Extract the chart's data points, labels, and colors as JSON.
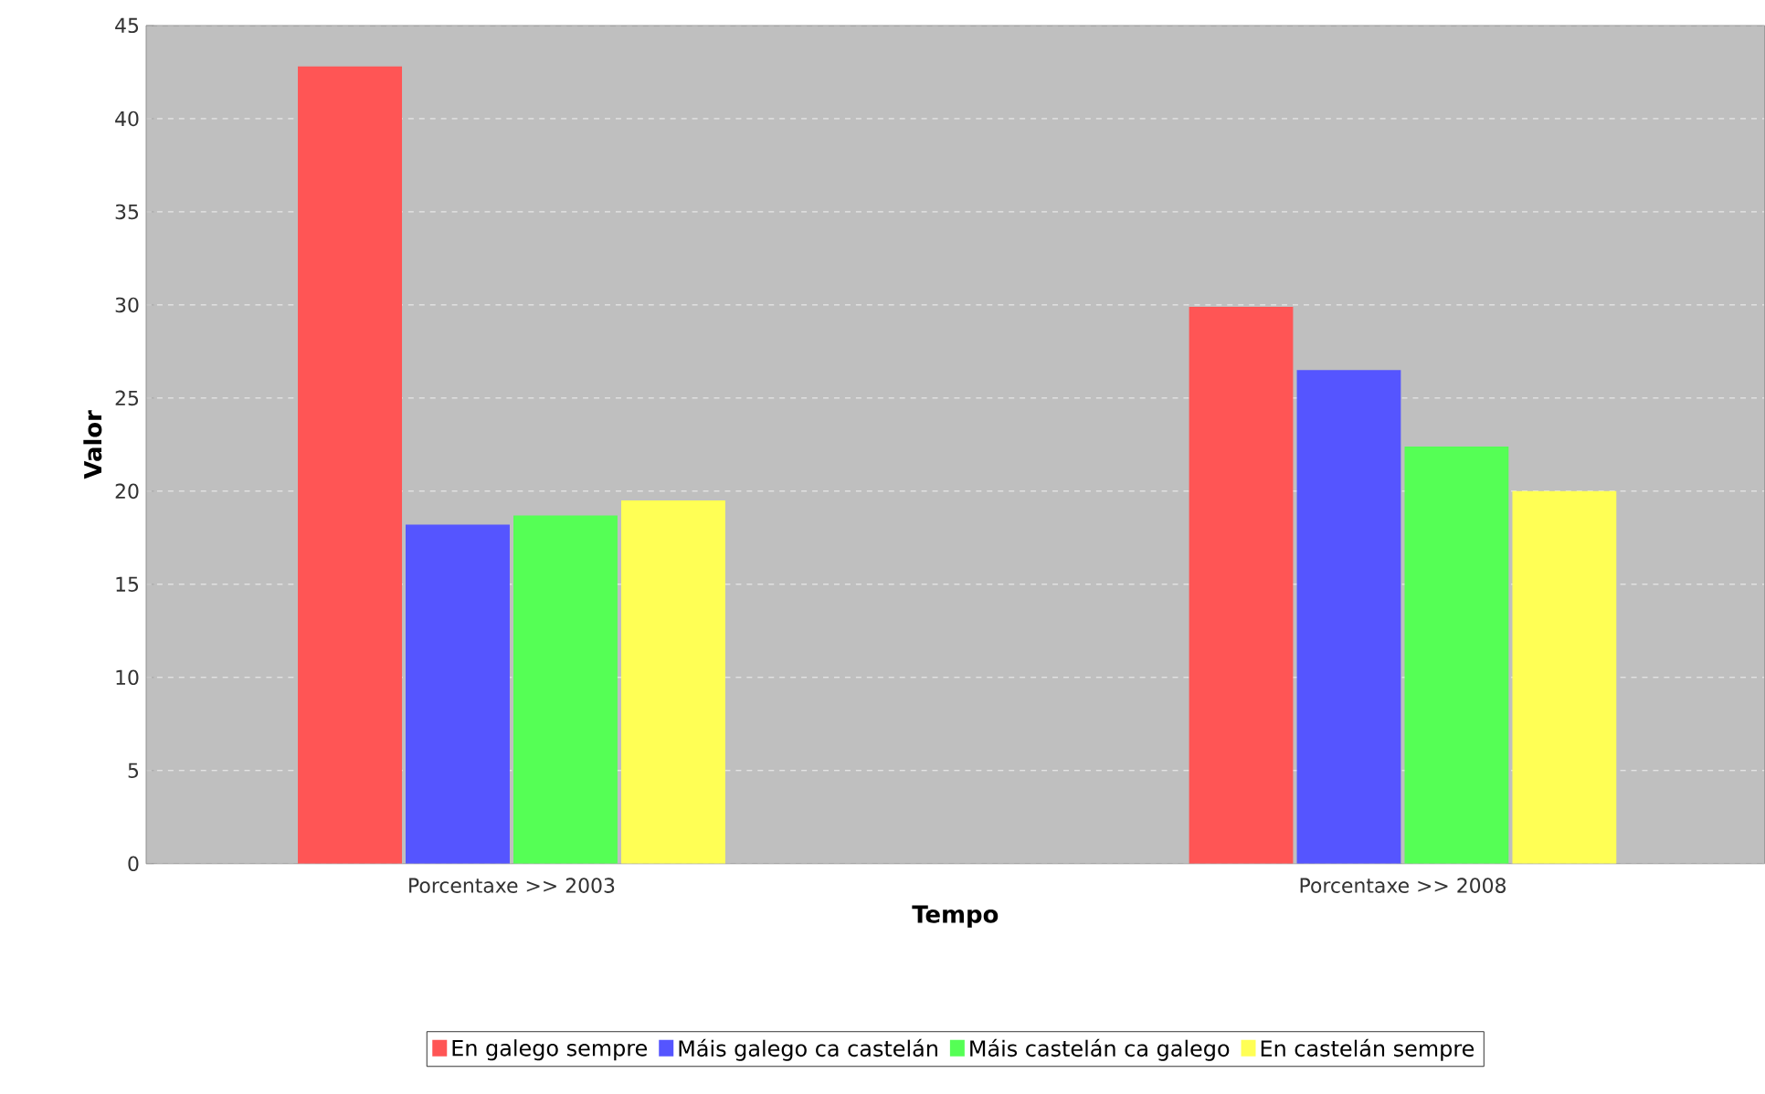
{
  "chart_data": {
    "type": "bar",
    "xlabel": "Tempo",
    "ylabel": "Valor",
    "categories": [
      "Porcentaxe >> 2003",
      "Porcentaxe >> 2008"
    ],
    "series": [
      {
        "name": "En galego sempre",
        "color": "#ff5555",
        "values": [
          42.8,
          29.9
        ]
      },
      {
        "name": "Máis galego ca castelán",
        "color": "#5555ff",
        "values": [
          18.2,
          26.5
        ]
      },
      {
        "name": "Máis castelán ca galego",
        "color": "#55ff55",
        "values": [
          18.7,
          22.4
        ]
      },
      {
        "name": "En castelán sempre",
        "color": "#ffff55",
        "values": [
          19.5,
          20.0
        ]
      }
    ],
    "ylim": [
      0,
      45
    ],
    "yticks": [
      0,
      5,
      10,
      15,
      20,
      25,
      30,
      35,
      40,
      45
    ],
    "grid": "y",
    "legend": "bottom"
  }
}
